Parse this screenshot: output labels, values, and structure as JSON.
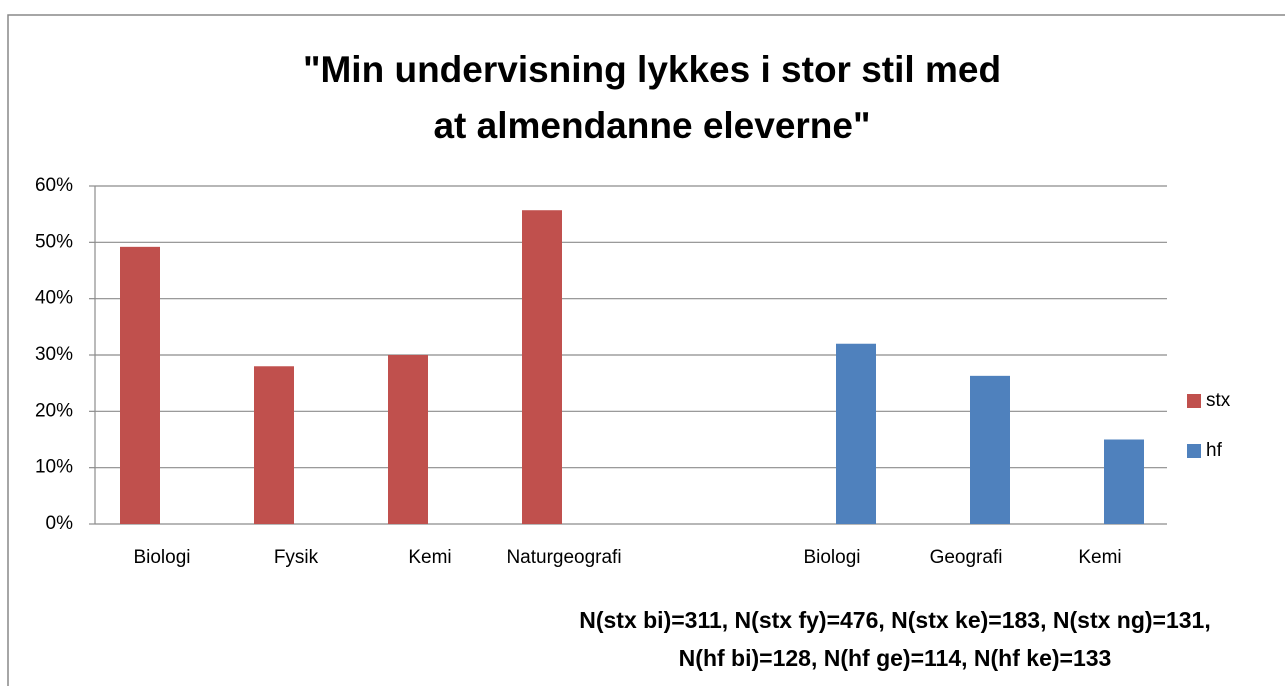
{
  "chart_data": {
    "type": "bar",
    "title": [
      "\"Min undervisning lykkes i stor stil med",
      "at almendanne eleverne\""
    ],
    "categories": [
      "Biologi",
      "Fysik",
      "Kemi",
      "Naturgeografi",
      null,
      "Biologi",
      "Geografi",
      "Kemi"
    ],
    "series": [
      {
        "name": "stx",
        "color": "#c0504d",
        "values": [
          49.2,
          28,
          30,
          55.7,
          null,
          null,
          null,
          null
        ]
      },
      {
        "name": "hf",
        "color": "#4f81bd",
        "values": [
          null,
          null,
          null,
          null,
          null,
          32,
          26.3,
          15
        ]
      }
    ],
    "ylim": [
      0,
      60
    ],
    "yticks": [
      {
        "value": 0,
        "label": "0%"
      },
      {
        "value": 10,
        "label": "10%"
      },
      {
        "value": 20,
        "label": "20%"
      },
      {
        "value": 30,
        "label": "30%"
      },
      {
        "value": 40,
        "label": "40%"
      },
      {
        "value": 50,
        "label": "50%"
      },
      {
        "value": 60,
        "label": "60%"
      }
    ],
    "grid": true,
    "legend": "right",
    "annotations": [
      "N(stx bi)=311, N(stx fy)=476, N(stx ke)=183, N(stx ng)=131,",
      "N(hf bi)=128, N(hf ge)=114, N(hf ke)=133"
    ]
  }
}
